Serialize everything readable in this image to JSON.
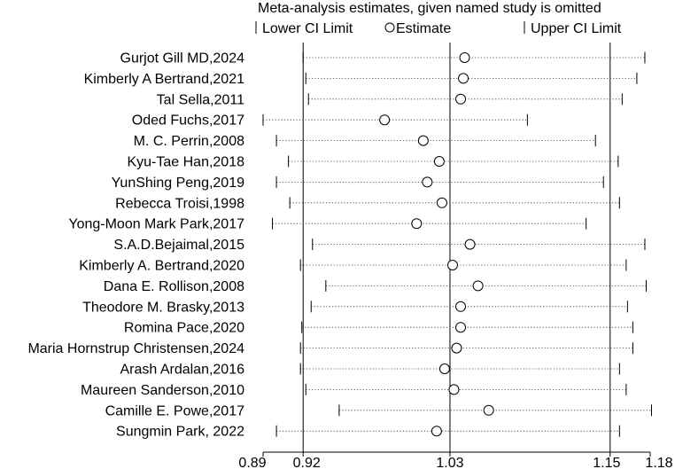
{
  "chart_data": {
    "type": "forest",
    "title": "Meta-analysis estimates, given named study is omitted",
    "legend": {
      "lower": "Lower CI Limit",
      "estimate": "Estimate",
      "upper": "Upper CI Limit"
    },
    "xticks": [
      {
        "value": 0.89,
        "label": "0.89"
      },
      {
        "value": 0.92,
        "label": "0.92"
      },
      {
        "value": 1.03,
        "label": "1.03"
      },
      {
        "value": 1.15,
        "label": "1.15"
      },
      {
        "value": 1.18,
        "label": "1.18"
      }
    ],
    "xlim": [
      0.89,
      1.18
    ],
    "reference_lines": [
      0.92,
      1.03,
      1.15
    ],
    "studies": [
      {
        "label": "Gurjot Gill MD,2024",
        "lower": 0.92,
        "estimate": 1.041,
        "upper": 1.176
      },
      {
        "label": "Kimberly A Bertrand,2021",
        "lower": 0.922,
        "estimate": 1.04,
        "upper": 1.17
      },
      {
        "label": "Tal Sella,2011",
        "lower": 0.924,
        "estimate": 1.038,
        "upper": 1.159
      },
      {
        "label": "Oded Fuchs,2017",
        "lower": 0.89,
        "estimate": 0.981,
        "upper": 1.088
      },
      {
        "label": "M. C. Perrin,2008",
        "lower": 0.9,
        "estimate": 1.01,
        "upper": 1.139
      },
      {
        "label": "Kyu-Tae Han,2018",
        "lower": 0.909,
        "estimate": 1.022,
        "upper": 1.156
      },
      {
        "label": "YunShing Peng,2019",
        "lower": 0.9,
        "estimate": 1.013,
        "upper": 1.145
      },
      {
        "label": "Rebecca Troisi,1998",
        "lower": 0.91,
        "estimate": 1.024,
        "upper": 1.157
      },
      {
        "label": "Yong-Moon Mark Park,2017",
        "lower": 0.897,
        "estimate": 1.005,
        "upper": 1.132
      },
      {
        "label": "S.A.D.Bejaimal,2015",
        "lower": 0.927,
        "estimate": 1.045,
        "upper": 1.176
      },
      {
        "label": "Kimberly A. Bertrand,2020",
        "lower": 0.918,
        "estimate": 1.032,
        "upper": 1.162
      },
      {
        "label": "Dana E. Rollison,2008",
        "lower": 0.937,
        "estimate": 1.051,
        "upper": 1.177
      },
      {
        "label": "Theodore M. Brasky,2013",
        "lower": 0.926,
        "estimate": 1.038,
        "upper": 1.163
      },
      {
        "label": "Romina Pace,2020",
        "lower": 0.919,
        "estimate": 1.038,
        "upper": 1.167
      },
      {
        "label": "Maria Hornstrup Christensen,2024",
        "lower": 0.918,
        "estimate": 1.035,
        "upper": 1.167
      },
      {
        "label": "Arash Ardalan,2016",
        "lower": 0.918,
        "estimate": 1.026,
        "upper": 1.157
      },
      {
        "label": "Maureen Sanderson,2010",
        "lower": 0.922,
        "estimate": 1.033,
        "upper": 1.162
      },
      {
        "label": "Camille E. Powe,2017",
        "lower": 0.947,
        "estimate": 1.059,
        "upper": 1.181
      },
      {
        "label": "Sungmin Park,   2022",
        "lower": 0.9,
        "estimate": 1.02,
        "upper": 1.157
      }
    ]
  }
}
